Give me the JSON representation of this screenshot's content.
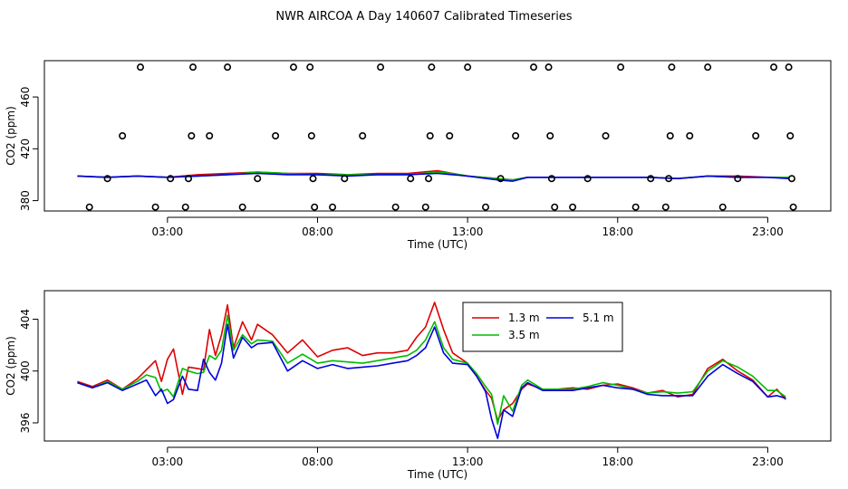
{
  "figure": {
    "title": "NWR AIRCOA A  Day 140607  Calibrated Timeseries"
  },
  "chart_data": [
    {
      "type": "line",
      "title": "",
      "xlabel": "Time (UTC)",
      "ylabel": "CO2 (ppm)",
      "xlim": [
        -1.1,
        25.1
      ],
      "ylim": [
        372,
        488
      ],
      "x_ticks": [
        3,
        8,
        13,
        18,
        23
      ],
      "x_tick_labels": [
        "03:00",
        "08:00",
        "13:00",
        "18:00",
        "23:00"
      ],
      "y_ticks": [
        380,
        420,
        460
      ],
      "y_tick_labels": [
        "380",
        "420",
        "460"
      ],
      "legend": null,
      "series": [
        {
          "name": "",
          "color": "#dd0000",
          "x": [
            0.0,
            1.0,
            2.0,
            3.0,
            4.0,
            5.0,
            6.0,
            7.0,
            8.0,
            9.0,
            10.0,
            11.0,
            12.0,
            12.5,
            13.0,
            14.0,
            14.5,
            15.0,
            16.0,
            17.0,
            18.0,
            19.0,
            20.0,
            21.0,
            22.0,
            23.0,
            23.7
          ],
          "y": [
            399,
            398,
            399,
            398,
            400,
            401,
            402,
            401,
            401,
            400,
            401,
            401,
            403,
            401,
            399,
            397,
            396,
            398,
            398,
            398,
            398,
            398,
            397,
            399,
            399,
            398,
            398
          ]
        },
        {
          "name": "",
          "color": "#00bb00",
          "x": [
            0.0,
            1.0,
            2.0,
            3.0,
            4.0,
            5.0,
            6.0,
            7.0,
            8.0,
            9.0,
            10.0,
            11.0,
            12.0,
            12.5,
            13.0,
            14.0,
            14.5,
            15.0,
            16.0,
            17.0,
            18.0,
            19.0,
            20.0,
            21.0,
            22.0,
            23.0,
            23.7
          ],
          "y": [
            399,
            398,
            399,
            398,
            399,
            400,
            402,
            401,
            400,
            400,
            400,
            400,
            402,
            401,
            399,
            397,
            396,
            398,
            398,
            398,
            398,
            398,
            397,
            399,
            398,
            398,
            398
          ]
        },
        {
          "name": "",
          "color": "#0000dd",
          "x": [
            0.0,
            1.0,
            2.0,
            3.0,
            4.0,
            5.0,
            6.0,
            7.0,
            8.0,
            9.0,
            10.0,
            11.0,
            12.0,
            12.5,
            13.0,
            14.0,
            14.5,
            15.0,
            16.0,
            17.0,
            18.0,
            19.0,
            20.0,
            21.0,
            22.0,
            23.0,
            23.7
          ],
          "y": [
            399,
            398,
            399,
            398,
            399,
            400,
            401,
            400,
            400,
            399,
            400,
            400,
            401,
            400,
            399,
            396,
            395,
            398,
            398,
            398,
            398,
            398,
            397,
            399,
            398,
            398,
            397
          ]
        }
      ],
      "points": [
        {
          "x": 0.4,
          "y": 375
        },
        {
          "x": 1.0,
          "y": 397
        },
        {
          "x": 1.5,
          "y": 430
        },
        {
          "x": 2.1,
          "y": 483
        },
        {
          "x": 2.6,
          "y": 375
        },
        {
          "x": 3.1,
          "y": 397
        },
        {
          "x": 3.6,
          "y": 375
        },
        {
          "x": 3.7,
          "y": 397
        },
        {
          "x": 3.8,
          "y": 430
        },
        {
          "x": 3.85,
          "y": 483
        },
        {
          "x": 4.4,
          "y": 430
        },
        {
          "x": 5.0,
          "y": 483
        },
        {
          "x": 5.5,
          "y": 375
        },
        {
          "x": 6.0,
          "y": 397
        },
        {
          "x": 6.6,
          "y": 430
        },
        {
          "x": 7.2,
          "y": 483
        },
        {
          "x": 7.75,
          "y": 483
        },
        {
          "x": 7.8,
          "y": 430
        },
        {
          "x": 7.85,
          "y": 397
        },
        {
          "x": 7.9,
          "y": 375
        },
        {
          "x": 8.5,
          "y": 375
        },
        {
          "x": 8.9,
          "y": 397
        },
        {
          "x": 9.5,
          "y": 430
        },
        {
          "x": 10.1,
          "y": 483
        },
        {
          "x": 10.6,
          "y": 375
        },
        {
          "x": 11.1,
          "y": 397
        },
        {
          "x": 11.6,
          "y": 375
        },
        {
          "x": 11.7,
          "y": 397
        },
        {
          "x": 11.75,
          "y": 430
        },
        {
          "x": 11.8,
          "y": 483
        },
        {
          "x": 12.4,
          "y": 430
        },
        {
          "x": 13.0,
          "y": 483
        },
        {
          "x": 13.6,
          "y": 375
        },
        {
          "x": 14.1,
          "y": 397
        },
        {
          "x": 14.6,
          "y": 430
        },
        {
          "x": 15.2,
          "y": 483
        },
        {
          "x": 15.7,
          "y": 483
        },
        {
          "x": 15.75,
          "y": 430
        },
        {
          "x": 15.8,
          "y": 397
        },
        {
          "x": 15.9,
          "y": 375
        },
        {
          "x": 16.5,
          "y": 375
        },
        {
          "x": 17.0,
          "y": 397
        },
        {
          "x": 17.6,
          "y": 430
        },
        {
          "x": 18.1,
          "y": 483
        },
        {
          "x": 18.6,
          "y": 375
        },
        {
          "x": 19.1,
          "y": 397
        },
        {
          "x": 19.6,
          "y": 375
        },
        {
          "x": 19.7,
          "y": 397
        },
        {
          "x": 19.75,
          "y": 430
        },
        {
          "x": 19.8,
          "y": 483
        },
        {
          "x": 20.4,
          "y": 430
        },
        {
          "x": 21.0,
          "y": 483
        },
        {
          "x": 21.5,
          "y": 375
        },
        {
          "x": 22.0,
          "y": 397
        },
        {
          "x": 22.6,
          "y": 430
        },
        {
          "x": 23.2,
          "y": 483
        },
        {
          "x": 23.7,
          "y": 483
        },
        {
          "x": 23.75,
          "y": 430
        },
        {
          "x": 23.8,
          "y": 397
        },
        {
          "x": 23.85,
          "y": 375
        }
      ]
    },
    {
      "type": "line",
      "title": "",
      "xlabel": "Time (UTC)",
      "ylabel": "CO2 (ppm)",
      "xlim": [
        -1.1,
        25.1
      ],
      "ylim": [
        394.6,
        406.2
      ],
      "x_ticks": [
        3,
        8,
        13,
        18,
        23
      ],
      "x_tick_labels": [
        "03:00",
        "08:00",
        "13:00",
        "18:00",
        "23:00"
      ],
      "y_ticks": [
        396,
        400,
        404
      ],
      "y_tick_labels": [
        "396",
        "400",
        "404"
      ],
      "legend": {
        "placement": "top-center-right",
        "columns": 2
      },
      "series": [
        {
          "name": "1.3 m",
          "color": "#dd0000",
          "x": [
            0.0,
            0.5,
            1.0,
            1.5,
            2.0,
            2.3,
            2.6,
            2.8,
            3.0,
            3.2,
            3.5,
            3.7,
            4.0,
            4.2,
            4.4,
            4.6,
            4.8,
            5.0,
            5.2,
            5.5,
            5.8,
            6.0,
            6.5,
            7.0,
            7.5,
            8.0,
            8.5,
            9.0,
            9.5,
            10.0,
            10.5,
            11.0,
            11.3,
            11.6,
            11.9,
            12.2,
            12.5,
            13.0,
            13.3,
            13.6,
            13.8,
            14.0,
            14.2,
            14.5,
            14.8,
            15.0,
            15.5,
            16.0,
            16.5,
            17.0,
            17.5,
            18.0,
            18.5,
            19.0,
            19.5,
            20.0,
            20.5,
            21.0,
            21.5,
            22.0,
            22.5,
            23.0,
            23.3,
            23.6
          ],
          "y": [
            399.2,
            398.8,
            399.3,
            398.6,
            399.4,
            400.1,
            400.8,
            399.2,
            400.9,
            401.7,
            398.2,
            400.3,
            400.2,
            400.1,
            403.2,
            401.2,
            402.8,
            405.1,
            401.8,
            403.8,
            402.4,
            403.6,
            402.8,
            401.4,
            402.4,
            401.1,
            401.6,
            401.8,
            401.2,
            401.4,
            401.4,
            401.6,
            402.6,
            403.4,
            405.3,
            403.2,
            401.4,
            400.6,
            399.6,
            398.5,
            397.9,
            396.2,
            397.0,
            397.5,
            398.6,
            399.0,
            398.6,
            398.6,
            398.7,
            398.6,
            398.9,
            399.0,
            398.7,
            398.3,
            398.5,
            398.0,
            398.2,
            400.2,
            400.9,
            400.0,
            399.3,
            398.0,
            398.6,
            397.8
          ]
        },
        {
          "name": "3.5 m",
          "color": "#00bb00",
          "x": [
            0.0,
            0.5,
            1.0,
            1.5,
            2.0,
            2.3,
            2.6,
            2.8,
            3.0,
            3.2,
            3.5,
            3.7,
            4.0,
            4.2,
            4.4,
            4.6,
            4.8,
            5.0,
            5.2,
            5.5,
            5.8,
            6.0,
            6.5,
            7.0,
            7.5,
            8.0,
            8.5,
            9.0,
            9.5,
            10.0,
            10.5,
            11.0,
            11.3,
            11.6,
            11.9,
            12.2,
            12.5,
            13.0,
            13.3,
            13.6,
            13.8,
            14.0,
            14.2,
            14.5,
            14.8,
            15.0,
            15.5,
            16.0,
            16.5,
            17.0,
            17.5,
            18.0,
            18.5,
            19.0,
            19.5,
            20.0,
            20.5,
            21.0,
            21.5,
            22.0,
            22.5,
            23.0,
            23.3,
            23.6
          ],
          "y": [
            399.1,
            398.7,
            399.2,
            398.6,
            399.2,
            399.7,
            399.5,
            398.4,
            398.6,
            398.0,
            400.2,
            400.0,
            399.8,
            399.9,
            401.2,
            400.9,
            401.6,
            404.3,
            401.6,
            402.8,
            402.1,
            402.4,
            402.3,
            400.6,
            401.3,
            400.6,
            400.8,
            400.7,
            400.6,
            400.8,
            401.0,
            401.2,
            401.6,
            402.4,
            403.8,
            401.8,
            400.9,
            400.6,
            399.8,
            398.8,
            398.2,
            395.9,
            398.1,
            396.9,
            398.9,
            399.3,
            398.6,
            398.6,
            398.6,
            398.8,
            399.1,
            398.9,
            398.6,
            398.3,
            398.4,
            398.3,
            398.4,
            400.0,
            400.8,
            400.3,
            399.6,
            398.5,
            398.5,
            398.0
          ]
        },
        {
          "name": "5.1 m",
          "color": "#0000dd",
          "x": [
            0.0,
            0.5,
            1.0,
            1.5,
            2.0,
            2.3,
            2.6,
            2.8,
            3.0,
            3.2,
            3.5,
            3.7,
            4.0,
            4.2,
            4.4,
            4.6,
            4.8,
            5.0,
            5.2,
            5.5,
            5.8,
            6.0,
            6.5,
            7.0,
            7.5,
            8.0,
            8.5,
            9.0,
            9.5,
            10.0,
            10.5,
            11.0,
            11.3,
            11.6,
            11.9,
            12.2,
            12.5,
            13.0,
            13.3,
            13.6,
            13.8,
            14.0,
            14.2,
            14.5,
            14.8,
            15.0,
            15.5,
            16.0,
            16.5,
            17.0,
            17.5,
            18.0,
            18.5,
            19.0,
            19.5,
            20.0,
            20.5,
            21.0,
            21.5,
            22.0,
            22.5,
            23.0,
            23.3,
            23.6
          ],
          "y": [
            399.1,
            398.7,
            399.1,
            398.5,
            399.0,
            399.3,
            398.1,
            398.6,
            397.5,
            397.8,
            399.6,
            398.6,
            398.5,
            400.9,
            399.9,
            399.3,
            400.6,
            403.6,
            401.0,
            402.6,
            401.8,
            402.1,
            402.2,
            400.0,
            400.8,
            400.2,
            400.5,
            400.2,
            400.3,
            400.4,
            400.6,
            400.8,
            401.2,
            401.8,
            403.4,
            401.4,
            400.6,
            400.5,
            399.6,
            398.4,
            396.3,
            394.8,
            397.0,
            396.5,
            398.7,
            399.1,
            398.5,
            398.5,
            398.5,
            398.7,
            398.9,
            398.7,
            398.6,
            398.2,
            398.1,
            398.1,
            398.1,
            399.6,
            400.5,
            399.8,
            399.2,
            398.0,
            398.1,
            397.9
          ]
        }
      ]
    }
  ]
}
